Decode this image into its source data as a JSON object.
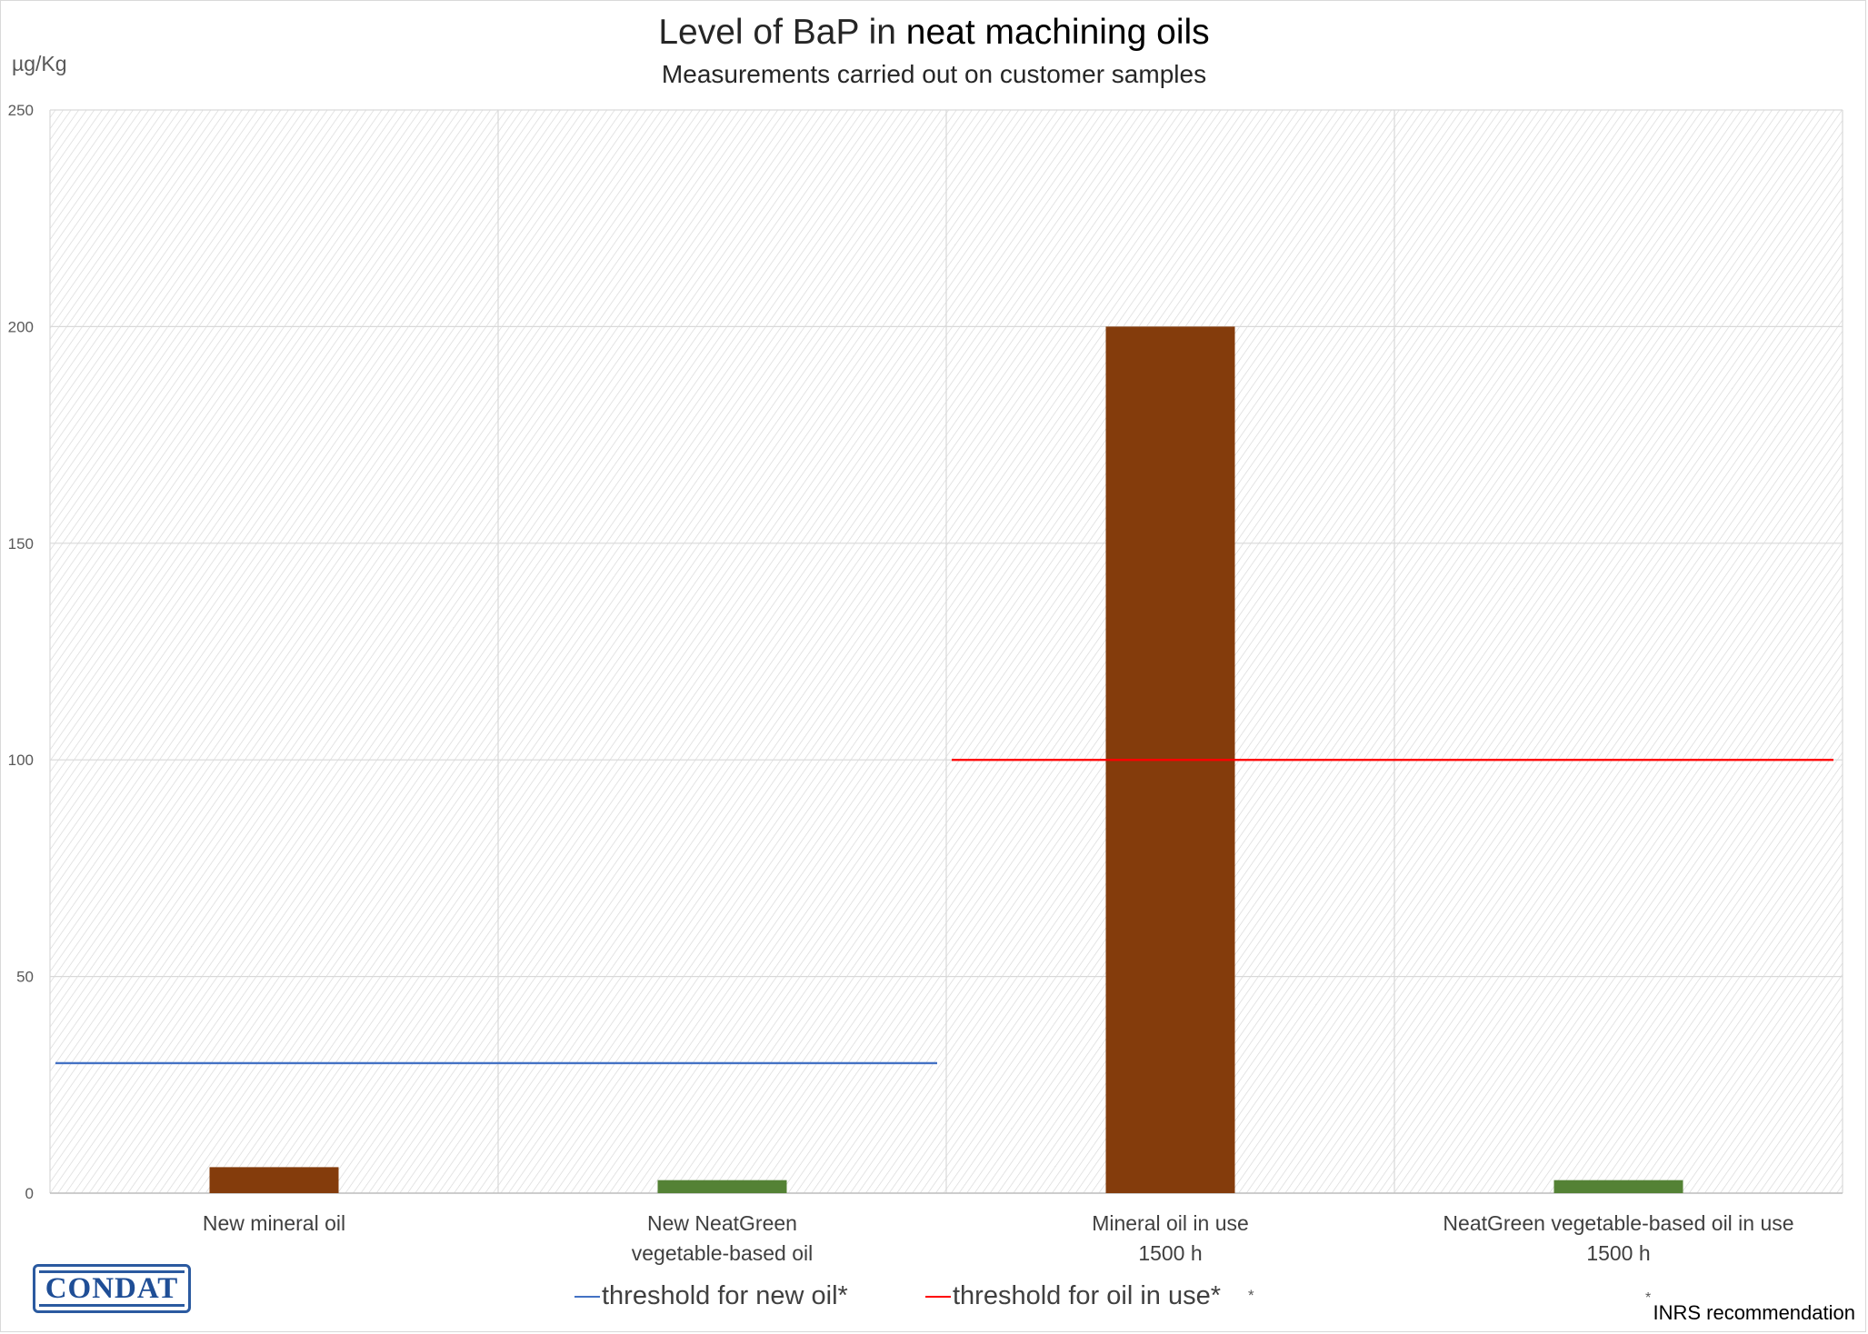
{
  "chart_data": {
    "type": "bar",
    "title_plain": "Level of BaP in",
    "title_bold": "neat machining oils",
    "subtitle": "Measurements carried out on customer samples",
    "ylabel": "µg/Kg",
    "ylim": [
      0,
      250
    ],
    "yticks": [
      "0",
      "50",
      "100",
      "150",
      "200",
      "250"
    ],
    "ytick_values": [
      0,
      50,
      100,
      150,
      200,
      250
    ],
    "grid": true,
    "categories": [
      [
        "New mineral oil"
      ],
      [
        "New NeatGreen",
        "vegetable-based oil"
      ],
      [
        "Mineral oil in use",
        "1500 h"
      ],
      [
        "NeatGreen vegetable-based oil in use",
        "1500 h"
      ]
    ],
    "values": [
      6,
      3,
      200,
      3
    ],
    "bar_colors": [
      "#843c0c",
      "#548235",
      "#843c0c",
      "#548235"
    ],
    "thresholds": [
      {
        "name": "threshold for new oil*",
        "value": 30,
        "categories": [
          0,
          1
        ],
        "color": "#4472c4"
      },
      {
        "name": "threshold for oil in use*",
        "value": 100,
        "categories": [
          2,
          3
        ],
        "color": "#ff0000"
      }
    ],
    "legend_position": "bottom",
    "footnote": "INRS recommendation",
    "footnote_mark": "*"
  },
  "logo_text": "CONDAT"
}
